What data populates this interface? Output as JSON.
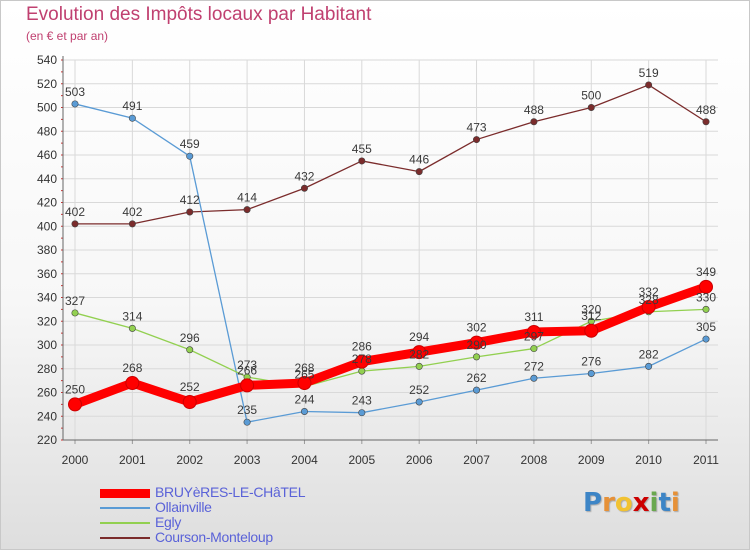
{
  "header": {
    "title": "Evolution des Impôts locaux par Habitant",
    "subtitle": "(en € et par an)"
  },
  "logo": {
    "text": "Proxiti",
    "letter_colors": [
      "#3d85c6",
      "#e69138",
      "#f1c232",
      "#cc0000",
      "#6aa84f",
      "#3d85c6",
      "#e69138"
    ]
  },
  "chart_data": {
    "type": "line",
    "title": "Evolution des Impôts locaux par Habitant",
    "subtitle": "(en € et par an)",
    "x": [
      "2000",
      "2001",
      "2002",
      "2003",
      "2004",
      "2005",
      "2006",
      "2007",
      "2008",
      "2009",
      "2010",
      "2011"
    ],
    "ylim": [
      220,
      540
    ],
    "yticks": [
      220,
      240,
      260,
      280,
      300,
      320,
      340,
      360,
      380,
      400,
      420,
      440,
      460,
      480,
      500,
      520,
      540
    ],
    "grid": true,
    "legend_position": "bottom-left",
    "series": [
      {
        "name": "BRUYèRES-LE-CHâTEL",
        "color": "#ff0000",
        "values": [
          250,
          268,
          252,
          266,
          268,
          286,
          294,
          302,
          311,
          312,
          332,
          349
        ]
      },
      {
        "name": "Ollainville",
        "color": "#5a9bd5",
        "values": [
          503,
          491,
          459,
          235,
          244,
          243,
          252,
          262,
          272,
          276,
          282,
          305
        ]
      },
      {
        "name": "Egly",
        "color": "#92d050",
        "values": [
          327,
          314,
          296,
          273,
          265,
          278,
          282,
          290,
          297,
          320,
          328,
          330
        ]
      },
      {
        "name": "Courson-Monteloup",
        "color": "#7b2c2c",
        "values": [
          402,
          402,
          412,
          414,
          432,
          455,
          446,
          473,
          488,
          500,
          519,
          488
        ]
      }
    ]
  }
}
